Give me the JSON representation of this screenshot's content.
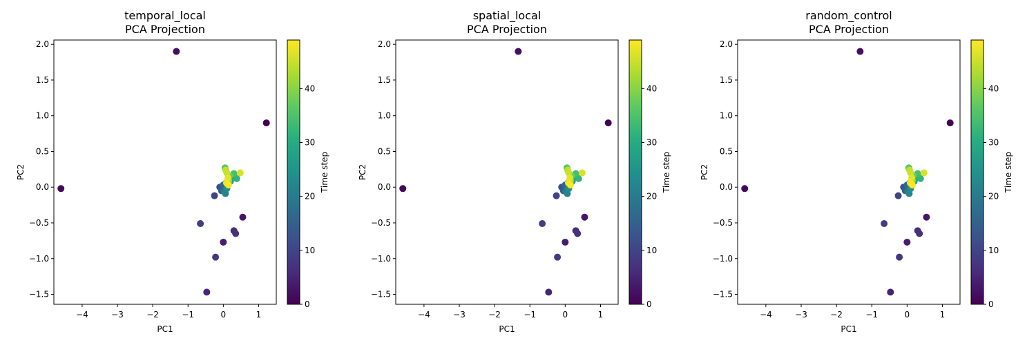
{
  "chart_data": [
    {
      "type": "scatter",
      "title": "temporal_local\nPCA Projection",
      "xlabel": "PC1",
      "ylabel": "PC2",
      "xlim": [
        -4.8,
        1.5
      ],
      "ylim": [
        -1.64,
        2.06
      ],
      "xticks": [
        -4,
        -3,
        -2,
        -1,
        0,
        1
      ],
      "yticks": [
        -1.5,
        -1.0,
        -0.5,
        0.0,
        0.5,
        1.0,
        1.5,
        2.0
      ],
      "colorbar": {
        "label": "Time step",
        "range": [
          0,
          49
        ],
        "ticks": [
          0,
          10,
          20,
          30,
          40
        ],
        "colormap": "viridis"
      },
      "grid": false,
      "points": [
        {
          "x": 1.22,
          "y": 0.9,
          "t": 0
        },
        {
          "x": -4.6,
          "y": -0.02,
          "t": 1
        },
        {
          "x": -1.33,
          "y": 1.9,
          "t": 2
        },
        {
          "x": 0.55,
          "y": -0.42,
          "t": 3
        },
        {
          "x": 0.0,
          "y": -0.77,
          "t": 4
        },
        {
          "x": -0.47,
          "y": -1.47,
          "t": 5
        },
        {
          "x": 0.3,
          "y": -0.61,
          "t": 6
        },
        {
          "x": 0.35,
          "y": -0.65,
          "t": 7
        },
        {
          "x": -0.22,
          "y": -0.98,
          "t": 8
        },
        {
          "x": -0.65,
          "y": -0.51,
          "t": 9
        },
        {
          "x": -0.25,
          "y": -0.12,
          "t": 10
        },
        {
          "x": -0.1,
          "y": 0.0,
          "t": 12
        },
        {
          "x": -0.05,
          "y": -0.05,
          "t": 14
        },
        {
          "x": 0.0,
          "y": 0.03,
          "t": 16
        },
        {
          "x": 0.08,
          "y": 0.06,
          "t": 18
        },
        {
          "x": 0.02,
          "y": -0.06,
          "t": 20
        },
        {
          "x": 0.06,
          "y": -0.09,
          "t": 22
        },
        {
          "x": 0.1,
          "y": -0.02,
          "t": 24
        },
        {
          "x": 0.12,
          "y": 0.02,
          "t": 26
        },
        {
          "x": 0.2,
          "y": 0.08,
          "t": 28
        },
        {
          "x": 0.28,
          "y": 0.13,
          "t": 30
        },
        {
          "x": 0.38,
          "y": 0.12,
          "t": 32
        },
        {
          "x": 0.3,
          "y": 0.19,
          "t": 34
        },
        {
          "x": 0.05,
          "y": 0.27,
          "t": 36
        },
        {
          "x": 0.18,
          "y": 0.16,
          "t": 38
        },
        {
          "x": 0.12,
          "y": 0.05,
          "t": 40
        },
        {
          "x": 0.15,
          "y": 0.09,
          "t": 42
        },
        {
          "x": 0.07,
          "y": 0.24,
          "t": 44
        },
        {
          "x": 0.1,
          "y": 0.2,
          "t": 45
        },
        {
          "x": 0.48,
          "y": 0.2,
          "t": 46
        },
        {
          "x": 0.13,
          "y": 0.13,
          "t": 47
        },
        {
          "x": 0.09,
          "y": 0.06,
          "t": 48
        },
        {
          "x": 0.15,
          "y": 0.03,
          "t": 49
        }
      ]
    },
    {
      "type": "scatter",
      "title": "spatial_local\nPCA Projection",
      "xlabel": "PC1",
      "ylabel": "PC2",
      "xlim": [
        -4.8,
        1.5
      ],
      "ylim": [
        -1.64,
        2.06
      ],
      "xticks": [
        -4,
        -3,
        -2,
        -1,
        0,
        1
      ],
      "yticks": [
        -1.5,
        -1.0,
        -0.5,
        0.0,
        0.5,
        1.0,
        1.5,
        2.0
      ],
      "colorbar": {
        "label": "Time step",
        "range": [
          0,
          49
        ],
        "ticks": [
          0,
          10,
          20,
          30,
          40
        ],
        "colormap": "viridis"
      },
      "grid": false,
      "points": [
        {
          "x": 1.22,
          "y": 0.9,
          "t": 0
        },
        {
          "x": -4.6,
          "y": -0.02,
          "t": 1
        },
        {
          "x": -1.33,
          "y": 1.9,
          "t": 2
        },
        {
          "x": 0.55,
          "y": -0.42,
          "t": 3
        },
        {
          "x": 0.0,
          "y": -0.77,
          "t": 4
        },
        {
          "x": -0.47,
          "y": -1.47,
          "t": 5
        },
        {
          "x": 0.3,
          "y": -0.61,
          "t": 6
        },
        {
          "x": 0.35,
          "y": -0.65,
          "t": 7
        },
        {
          "x": -0.22,
          "y": -0.98,
          "t": 8
        },
        {
          "x": -0.65,
          "y": -0.51,
          "t": 9
        },
        {
          "x": -0.25,
          "y": -0.12,
          "t": 10
        },
        {
          "x": -0.1,
          "y": 0.0,
          "t": 12
        },
        {
          "x": -0.05,
          "y": -0.05,
          "t": 14
        },
        {
          "x": 0.0,
          "y": 0.03,
          "t": 16
        },
        {
          "x": 0.08,
          "y": 0.06,
          "t": 18
        },
        {
          "x": 0.02,
          "y": -0.06,
          "t": 20
        },
        {
          "x": 0.06,
          "y": -0.09,
          "t": 22
        },
        {
          "x": 0.1,
          "y": -0.02,
          "t": 24
        },
        {
          "x": 0.12,
          "y": 0.02,
          "t": 26
        },
        {
          "x": 0.2,
          "y": 0.08,
          "t": 28
        },
        {
          "x": 0.28,
          "y": 0.13,
          "t": 30
        },
        {
          "x": 0.38,
          "y": 0.12,
          "t": 32
        },
        {
          "x": 0.3,
          "y": 0.19,
          "t": 34
        },
        {
          "x": 0.05,
          "y": 0.27,
          "t": 36
        },
        {
          "x": 0.18,
          "y": 0.16,
          "t": 38
        },
        {
          "x": 0.12,
          "y": 0.05,
          "t": 40
        },
        {
          "x": 0.15,
          "y": 0.09,
          "t": 42
        },
        {
          "x": 0.07,
          "y": 0.24,
          "t": 44
        },
        {
          "x": 0.1,
          "y": 0.2,
          "t": 45
        },
        {
          "x": 0.48,
          "y": 0.2,
          "t": 46
        },
        {
          "x": 0.13,
          "y": 0.13,
          "t": 47
        },
        {
          "x": 0.09,
          "y": 0.06,
          "t": 48
        },
        {
          "x": 0.15,
          "y": 0.03,
          "t": 49
        }
      ]
    },
    {
      "type": "scatter",
      "title": "random_control\nPCA Projection",
      "xlabel": "PC1",
      "ylabel": "PC2",
      "xlim": [
        -4.8,
        1.5
      ],
      "ylim": [
        -1.64,
        2.06
      ],
      "xticks": [
        -4,
        -3,
        -2,
        -1,
        0,
        1
      ],
      "yticks": [
        -1.5,
        -1.0,
        -0.5,
        0.0,
        0.5,
        1.0,
        1.5,
        2.0
      ],
      "colorbar": {
        "label": "Time step",
        "range": [
          0,
          49
        ],
        "ticks": [
          0,
          10,
          20,
          30,
          40
        ],
        "colormap": "viridis"
      },
      "grid": false,
      "points": [
        {
          "x": 1.22,
          "y": 0.9,
          "t": 0
        },
        {
          "x": -4.6,
          "y": -0.02,
          "t": 1
        },
        {
          "x": -1.33,
          "y": 1.9,
          "t": 2
        },
        {
          "x": 0.55,
          "y": -0.42,
          "t": 3
        },
        {
          "x": 0.0,
          "y": -0.77,
          "t": 4
        },
        {
          "x": -0.47,
          "y": -1.47,
          "t": 5
        },
        {
          "x": 0.3,
          "y": -0.61,
          "t": 6
        },
        {
          "x": 0.35,
          "y": -0.65,
          "t": 7
        },
        {
          "x": -0.22,
          "y": -0.98,
          "t": 8
        },
        {
          "x": -0.65,
          "y": -0.51,
          "t": 9
        },
        {
          "x": -0.25,
          "y": -0.12,
          "t": 10
        },
        {
          "x": -0.1,
          "y": 0.0,
          "t": 12
        },
        {
          "x": -0.05,
          "y": -0.05,
          "t": 14
        },
        {
          "x": 0.0,
          "y": 0.03,
          "t": 16
        },
        {
          "x": 0.08,
          "y": 0.06,
          "t": 18
        },
        {
          "x": 0.02,
          "y": -0.06,
          "t": 20
        },
        {
          "x": 0.06,
          "y": -0.09,
          "t": 22
        },
        {
          "x": 0.1,
          "y": -0.02,
          "t": 24
        },
        {
          "x": 0.12,
          "y": 0.02,
          "t": 26
        },
        {
          "x": 0.2,
          "y": 0.08,
          "t": 28
        },
        {
          "x": 0.28,
          "y": 0.13,
          "t": 30
        },
        {
          "x": 0.38,
          "y": 0.12,
          "t": 32
        },
        {
          "x": 0.3,
          "y": 0.19,
          "t": 34
        },
        {
          "x": 0.05,
          "y": 0.27,
          "t": 36
        },
        {
          "x": 0.18,
          "y": 0.16,
          "t": 38
        },
        {
          "x": 0.12,
          "y": 0.05,
          "t": 40
        },
        {
          "x": 0.15,
          "y": 0.09,
          "t": 42
        },
        {
          "x": 0.07,
          "y": 0.24,
          "t": 44
        },
        {
          "x": 0.1,
          "y": 0.2,
          "t": 45
        },
        {
          "x": 0.48,
          "y": 0.2,
          "t": 46
        },
        {
          "x": 0.13,
          "y": 0.13,
          "t": 47
        },
        {
          "x": 0.09,
          "y": 0.06,
          "t": 48
        },
        {
          "x": 0.15,
          "y": 0.03,
          "t": 49
        }
      ]
    }
  ]
}
